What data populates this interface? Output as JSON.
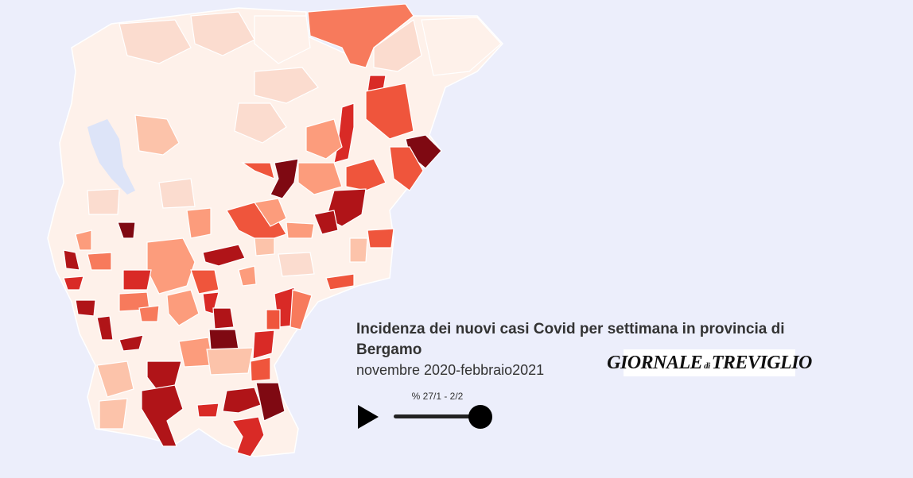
{
  "map": {
    "region": "Bergamo",
    "colors": {
      "very_light": "#fef1ea",
      "light": "#fbdccf",
      "light_mid": "#fcc3aa",
      "mid": "#fc9c7c",
      "orange": "#f77a5c",
      "red_orange": "#ef553c",
      "red": "#d92a26",
      "dark_red": "#b01418",
      "darkest": "#7f0912"
    },
    "lake_color": "#dde4f8"
  },
  "title": "Incidenza dei nuovi casi Covid per settimana in provincia di Bergamo",
  "subtitle": "novembre 2020-febbraio2021",
  "logo": {
    "part1": "GIORNALE",
    "part2": "di",
    "part3": "TREVIGLIO"
  },
  "player": {
    "label": "% 27/1 - 2/2",
    "progress": 1.0
  }
}
